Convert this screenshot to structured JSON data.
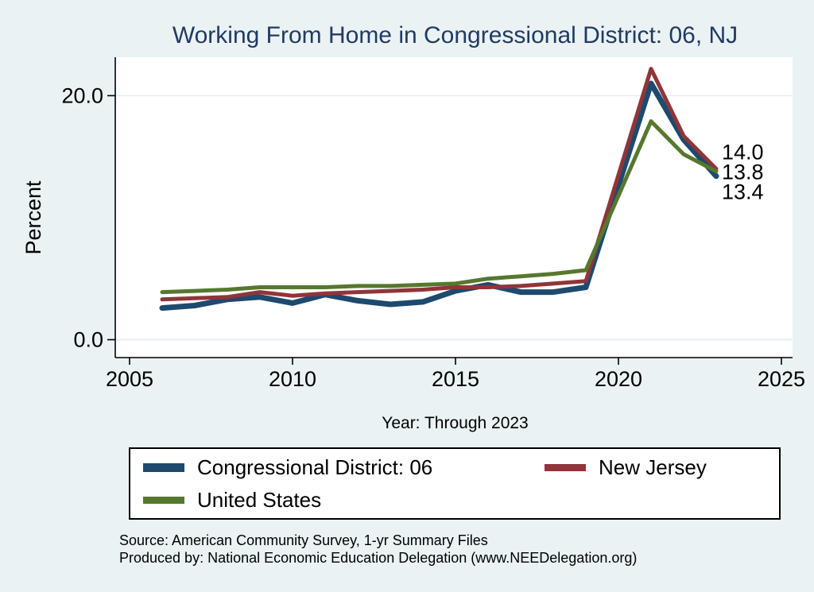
{
  "page": {
    "background_color": "#eaf2f3",
    "plot_background_color": "#ffffff",
    "gridline_color": "#e2edf4",
    "axis_color": "#000000",
    "title_color": "#203a64"
  },
  "chart_data": {
    "type": "line",
    "title": "Working From Home in Congressional District: 06, NJ",
    "xlabel": "Year: Through 2023",
    "ylabel": "Percent",
    "x": [
      2006,
      2007,
      2008,
      2009,
      2010,
      2011,
      2012,
      2013,
      2014,
      2015,
      2016,
      2017,
      2018,
      2019,
      2021,
      2022,
      2023
    ],
    "series": [
      {
        "name": "Congressional District: 06",
        "color": "#1d4a6e",
        "line_width": 7,
        "values": [
          2.6,
          2.8,
          3.3,
          3.5,
          3.0,
          3.7,
          3.2,
          2.9,
          3.1,
          4.0,
          4.5,
          3.9,
          3.9,
          4.3,
          21.0,
          16.4,
          13.4
        ],
        "end_label": "13.4"
      },
      {
        "name": "New Jersey",
        "color": "#903539",
        "line_width": 5,
        "values": [
          3.3,
          3.4,
          3.5,
          3.9,
          3.6,
          3.8,
          3.9,
          4.0,
          4.1,
          4.3,
          4.3,
          4.4,
          4.6,
          4.8,
          22.2,
          16.7,
          14.0
        ],
        "end_label": "14.0"
      },
      {
        "name": "United States",
        "color": "#56782e",
        "line_width": 5,
        "values": [
          3.9,
          4.0,
          4.1,
          4.3,
          4.3,
          4.3,
          4.4,
          4.4,
          4.5,
          4.6,
          5.0,
          5.2,
          5.4,
          5.7,
          17.9,
          15.2,
          13.8
        ],
        "end_label": "13.8"
      }
    ],
    "xticks": [
      "2005",
      "2010",
      "2015",
      "2020",
      "2025"
    ],
    "yticks": [
      "0.0",
      "20.0"
    ],
    "xlim": [
      2004.6,
      2025.3
    ],
    "ylim": [
      -1.5,
      23.1
    ],
    "grid": true,
    "legend_position": "bottom",
    "note": "No data point for 2020; lines connect 2019 directly to 2021"
  },
  "footer": {
    "source": "Source: American Community Survey, 1-yr Summary Files",
    "produced_by": "Produced by: National Economic Education Delegation (www.NEEDelegation.org)"
  }
}
